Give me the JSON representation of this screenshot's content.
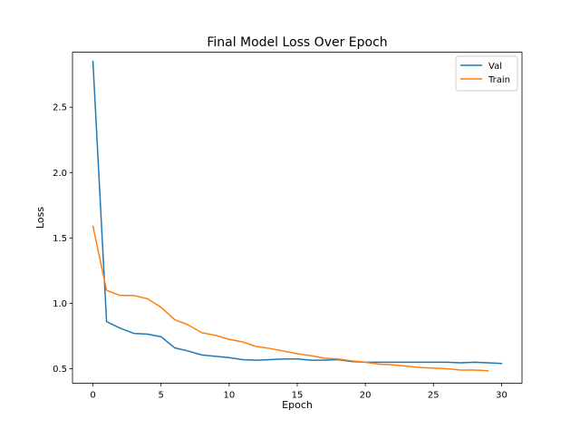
{
  "chart_data": {
    "type": "line",
    "title": "Final Model Loss Over Epoch",
    "xlabel": "Epoch",
    "ylabel": "Loss",
    "xlim": [
      -1.5,
      31.5
    ],
    "ylim": [
      0.39,
      2.92
    ],
    "xticks": [
      0,
      5,
      10,
      15,
      20,
      25,
      30
    ],
    "yticks": [
      0.5,
      1.0,
      1.5,
      2.0,
      2.5
    ],
    "xtick_labels": [
      "0",
      "5",
      "10",
      "15",
      "20",
      "25",
      "30"
    ],
    "ytick_labels": [
      "0.5",
      "1.0",
      "1.5",
      "2.0",
      "2.5"
    ],
    "grid": false,
    "legend_position": "top-right",
    "series": [
      {
        "name": "Val",
        "color": "#1f77b4",
        "x": [
          0,
          1,
          2,
          3,
          4,
          5,
          6,
          7,
          8,
          9,
          10,
          11,
          12,
          13,
          14,
          15,
          16,
          17,
          18,
          19,
          20,
          21,
          22,
          23,
          24,
          25,
          26,
          27,
          28,
          29,
          30
        ],
        "values": [
          2.85,
          0.86,
          0.81,
          0.77,
          0.765,
          0.745,
          0.66,
          0.635,
          0.605,
          0.595,
          0.585,
          0.57,
          0.565,
          0.57,
          0.575,
          0.575,
          0.565,
          0.565,
          0.57,
          0.555,
          0.55,
          0.55,
          0.55,
          0.55,
          0.55,
          0.55,
          0.55,
          0.545,
          0.55,
          0.545,
          0.54
        ]
      },
      {
        "name": "Train",
        "color": "#ff7f0e",
        "x": [
          0,
          1,
          2,
          3,
          4,
          5,
          6,
          7,
          8,
          9,
          10,
          11,
          12,
          13,
          14,
          15,
          16,
          17,
          18,
          19,
          20,
          21,
          22,
          23,
          24,
          25,
          26,
          27,
          28,
          29
        ],
        "values": [
          1.59,
          1.1,
          1.06,
          1.06,
          1.035,
          0.97,
          0.875,
          0.835,
          0.775,
          0.755,
          0.725,
          0.705,
          0.67,
          0.655,
          0.635,
          0.615,
          0.6,
          0.58,
          0.575,
          0.56,
          0.55,
          0.535,
          0.53,
          0.52,
          0.51,
          0.505,
          0.5,
          0.49,
          0.49,
          0.485
        ]
      }
    ]
  }
}
